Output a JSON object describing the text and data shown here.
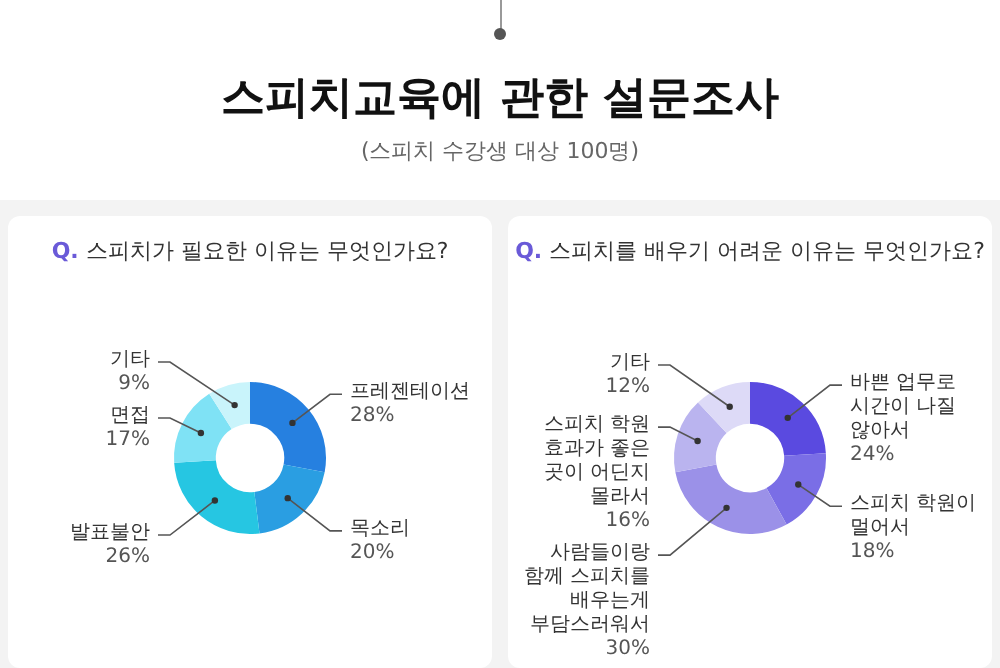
{
  "chart_data": [
    {
      "type": "donut",
      "title": "Q. 스피치가 필요한 이유는 무엇인가요?",
      "annotations": [
        "스피치교육에 관한 설문조사",
        "(스피치 수강생 대상 100명)"
      ],
      "categories": [
        "프레젠테이션",
        "목소리",
        "발표불안",
        "면접",
        "기타"
      ],
      "values": [
        28,
        20,
        26,
        17,
        9
      ],
      "value_labels": [
        "28%",
        "20%",
        "26%",
        "17%",
        "9%"
      ],
      "colors": [
        "#2680e0",
        "#2a9ee2",
        "#26c6e2",
        "#7fe2f5",
        "#c9f4fb"
      ]
    },
    {
      "type": "donut",
      "title": "Q. 스피치를 배우기 어려운 이유는 무엇인가요?",
      "categories": [
        "바쁜 업무로 시간이 나질 않아서",
        "스피치 학원이 멀어서",
        "사람들이랑 함께 스피치를 배우는게 부담스러워서",
        "스피치 학원 효과가 좋은 곳이 어딘지 몰라서",
        "기타"
      ],
      "values": [
        24,
        18,
        30,
        16,
        12
      ],
      "value_labels": [
        "24%",
        "18%",
        "30%",
        "16%",
        "12%"
      ],
      "colors": [
        "#5a4ae0",
        "#7a6ee6",
        "#9b91e8",
        "#bab4ef",
        "#dddaf7"
      ]
    }
  ]
}
